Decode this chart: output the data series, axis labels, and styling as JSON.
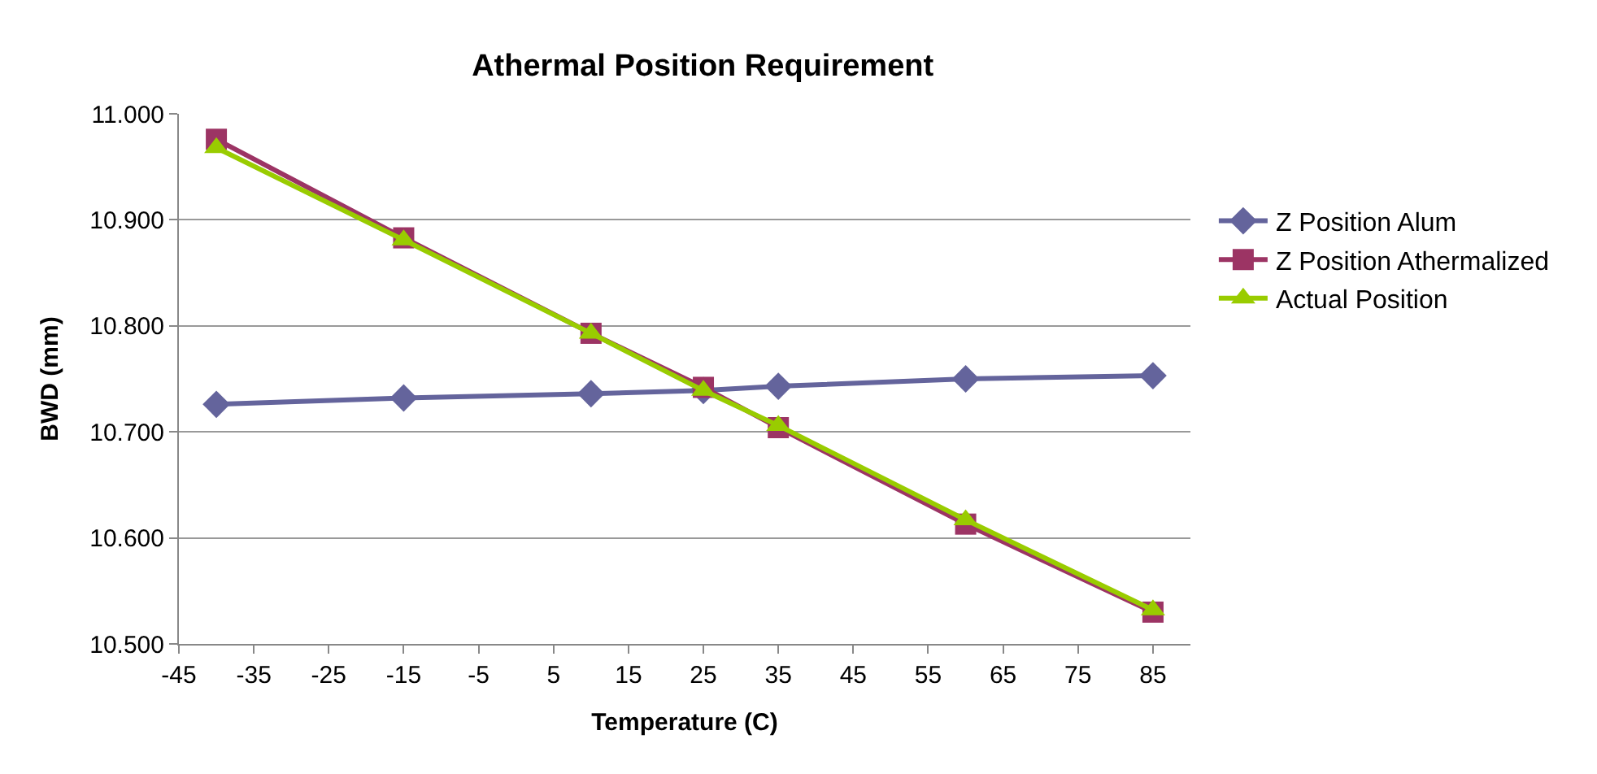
{
  "chart_data": {
    "type": "line",
    "title": "Athermal Position Requirement",
    "xlabel": "Temperature (C)",
    "ylabel": "BWD (mm)",
    "x": [
      -40,
      -15,
      10,
      25,
      35,
      60,
      85
    ],
    "series": [
      {
        "name": "Z Position Alum",
        "color": "#64649c",
        "marker": "diamond",
        "values": [
          10.726,
          10.732,
          10.736,
          10.739,
          10.743,
          10.75,
          10.753
        ]
      },
      {
        "name": "Z Position Athermalized",
        "color": "#9c3464",
        "marker": "square",
        "values": [
          10.976,
          10.883,
          10.793,
          10.742,
          10.704,
          10.613,
          10.53
        ]
      },
      {
        "name": "Actual Position",
        "color": "#99cc00",
        "marker": "triangle",
        "values": [
          10.968,
          10.881,
          10.793,
          10.739,
          10.706,
          10.617,
          10.532
        ]
      }
    ],
    "xlim": [
      -45,
      90
    ],
    "xticks": [
      -45,
      -35,
      -25,
      -15,
      -5,
      5,
      15,
      25,
      35,
      45,
      55,
      65,
      75,
      85
    ],
    "ylim": [
      10.5,
      11.0
    ],
    "yticks": [
      {
        "value": 10.5,
        "label": "10.500"
      },
      {
        "value": 10.6,
        "label": "10.600"
      },
      {
        "value": 10.7,
        "label": "10.700"
      },
      {
        "value": 10.8,
        "label": "10.800"
      },
      {
        "value": 10.9,
        "label": "10.900"
      },
      {
        "value": 11.0,
        "label": "11.000"
      }
    ],
    "grid": "y",
    "legend": "right"
  }
}
